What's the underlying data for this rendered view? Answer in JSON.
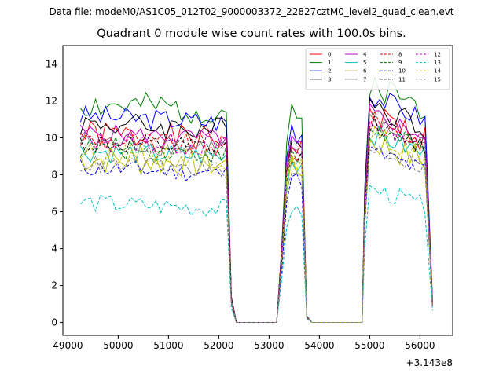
{
  "figure": {
    "suptitle": "Data file: modeM0/AS1C05_012T02_9000003372_22827cztM0_level2_quad_clean.evt"
  },
  "chart_data": {
    "type": "line",
    "title": "Quadrant 0 module wise count rates with 100.0s bins.",
    "xlabel": "",
    "ylabel": "",
    "x_offset_label": "+3.143e8",
    "xlim": [
      48900,
      56650
    ],
    "ylim": [
      -0.7,
      15.0
    ],
    "xticks": [
      49000,
      50000,
      51000,
      52000,
      53000,
      54000,
      55000,
      56000
    ],
    "yticks": [
      0,
      2,
      4,
      6,
      8,
      10,
      12,
      14
    ],
    "legend": {
      "location": "top-right",
      "ncol": 4
    },
    "segments": [
      {
        "x_start": 49250,
        "x_end": 52150,
        "step": 100
      },
      {
        "x_start": 53250,
        "x_end": 53750,
        "step": 100
      },
      {
        "x_start": 54900,
        "x_end": 56250,
        "step": 100
      }
    ],
    "zero_gaps": [
      {
        "x_start": 52350,
        "x_end": 53150
      },
      {
        "x_start": 53850,
        "x_end": 54850
      }
    ],
    "series": [
      {
        "name": "0",
        "color": "#ff0000",
        "dash": "solid",
        "level": 10.2,
        "noise": 0.8
      },
      {
        "name": "1",
        "color": "#008000",
        "dash": "solid",
        "level": 11.8,
        "noise": 0.8
      },
      {
        "name": "2",
        "color": "#0000ff",
        "dash": "solid",
        "level": 11.2,
        "noise": 0.6
      },
      {
        "name": "3",
        "color": "#000000",
        "dash": "solid",
        "level": 10.8,
        "noise": 0.7
      },
      {
        "name": "4",
        "color": "#bf00bf",
        "dash": "solid",
        "level": 10.3,
        "noise": 0.5
      },
      {
        "name": "5",
        "color": "#00bfbf",
        "dash": "solid",
        "level": 9.3,
        "noise": 0.6
      },
      {
        "name": "6",
        "color": "#bfbf00",
        "dash": "solid",
        "level": 8.9,
        "noise": 0.8
      },
      {
        "name": "7",
        "color": "#808080",
        "dash": "solid",
        "level": 9.8,
        "noise": 0.6
      },
      {
        "name": "8",
        "color": "#ff0000",
        "dash": "dashed",
        "level": 9.9,
        "noise": 0.6
      },
      {
        "name": "9",
        "color": "#008000",
        "dash": "dashed",
        "level": 9.5,
        "noise": 0.6
      },
      {
        "name": "10",
        "color": "#0000ff",
        "dash": "dashed",
        "level": 8.4,
        "noise": 0.5
      },
      {
        "name": "11",
        "color": "#000000",
        "dash": "dashed",
        "level": 9.7,
        "noise": 0.6
      },
      {
        "name": "12",
        "color": "#bf00bf",
        "dash": "dashed",
        "level": 9.9,
        "noise": 0.6
      },
      {
        "name": "13",
        "color": "#00bfbf",
        "dash": "dashed",
        "level": 6.5,
        "noise": 0.5
      },
      {
        "name": "14",
        "color": "#bfbf00",
        "dash": "dashed",
        "level": 9.2,
        "noise": 0.6
      },
      {
        "name": "15",
        "color": "#808080",
        "dash": "dashed",
        "level": 8.6,
        "noise": 0.5
      }
    ]
  }
}
